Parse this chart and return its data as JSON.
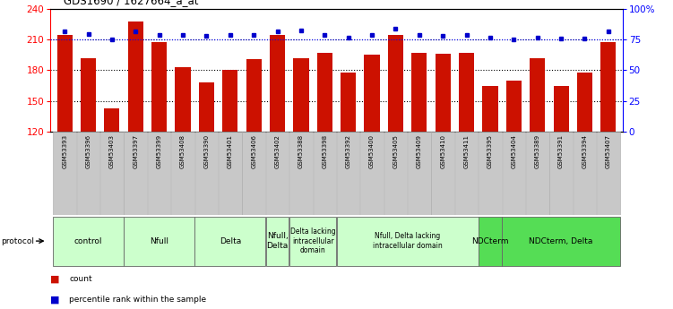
{
  "title": "GDS1690 / 1627664_a_at",
  "samples": [
    "GSM53393",
    "GSM53396",
    "GSM53403",
    "GSM53397",
    "GSM53399",
    "GSM53408",
    "GSM53390",
    "GSM53401",
    "GSM53406",
    "GSM53402",
    "GSM53388",
    "GSM53398",
    "GSM53392",
    "GSM53400",
    "GSM53405",
    "GSM53409",
    "GSM53410",
    "GSM53411",
    "GSM53395",
    "GSM53404",
    "GSM53389",
    "GSM53391",
    "GSM53394",
    "GSM53407"
  ],
  "counts": [
    215,
    192,
    143,
    228,
    208,
    183,
    168,
    180,
    191,
    215,
    192,
    197,
    178,
    195,
    215,
    197,
    196,
    197,
    165,
    170,
    192,
    165,
    178,
    208
  ],
  "percentiles": [
    82,
    80,
    75,
    82,
    79,
    79,
    78,
    79,
    79,
    82,
    83,
    79,
    77,
    79,
    84,
    79,
    78,
    79,
    77,
    75,
    77,
    76,
    76,
    82
  ],
  "ylim_left": [
    120,
    240
  ],
  "ylim_right": [
    0,
    100
  ],
  "yticks_left": [
    120,
    150,
    180,
    210,
    240
  ],
  "yticks_right": [
    0,
    25,
    50,
    75,
    100
  ],
  "ytick_labels_right": [
    "0",
    "25",
    "50",
    "75",
    "100%"
  ],
  "bar_color": "#cc1100",
  "dot_color": "#0000cc",
  "groups": [
    {
      "label": "control",
      "start": 0,
      "end": 3,
      "color": "#ccffcc"
    },
    {
      "label": "Nfull",
      "start": 3,
      "end": 6,
      "color": "#ccffcc"
    },
    {
      "label": "Delta",
      "start": 6,
      "end": 9,
      "color": "#ccffcc"
    },
    {
      "label": "Nfull,\nDelta",
      "start": 9,
      "end": 10,
      "color": "#ccffcc"
    },
    {
      "label": "Delta lacking\nintracellular\ndomain",
      "start": 10,
      "end": 12,
      "color": "#ccffcc"
    },
    {
      "label": "Nfull, Delta lacking\nintracellular domain",
      "start": 12,
      "end": 18,
      "color": "#ccffcc"
    },
    {
      "label": "NDCterm",
      "start": 18,
      "end": 19,
      "color": "#55dd55"
    },
    {
      "label": "NDCterm, Delta",
      "start": 19,
      "end": 24,
      "color": "#55dd55"
    }
  ],
  "protocol_label": "protocol",
  "legend_count_label": "count",
  "legend_pct_label": "percentile rank within the sample",
  "bg_color": "#ffffff",
  "sample_box_color": "#c8c8c8",
  "sample_box_edge": "#aaaaaa"
}
